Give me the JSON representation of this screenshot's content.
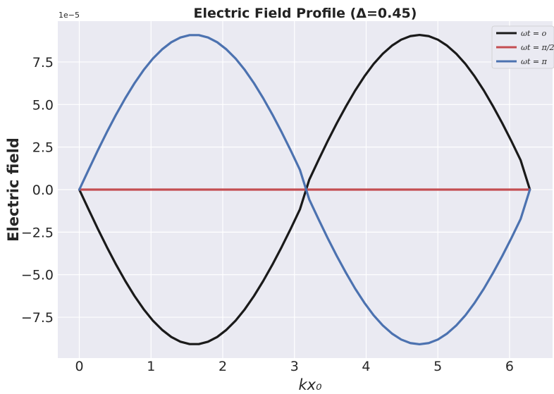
{
  "chart_data": {
    "type": "line",
    "title": "Electric Field Profile (Δ=0.45)",
    "xlabel": "kx₀",
    "ylabel": "Electric field",
    "y_offset_label": "1e−5",
    "xlim": [
      -0.3,
      6.6
    ],
    "ylim": [
      -9.9,
      9.9
    ],
    "y_scale_exponent": -5,
    "grid": true,
    "background": "#eaeaf2",
    "x_ticks": [
      0,
      1,
      2,
      3,
      4,
      5,
      6
    ],
    "x_tick_labels": [
      "0",
      "1",
      "2",
      "3",
      "4",
      "5",
      "6"
    ],
    "y_ticks": [
      -7.5,
      -5.0,
      -2.5,
      0.0,
      2.5,
      5.0,
      7.5
    ],
    "y_tick_labels": [
      "−7.5",
      "−5.0",
      "−2.5",
      "0.0",
      "2.5",
      "5.0",
      "7.5"
    ],
    "legend_position": "top-right",
    "x": [
      0,
      0.1282,
      0.2565,
      0.3847,
      0.5129,
      0.6411,
      0.7694,
      0.8976,
      1.0258,
      1.1541,
      1.2823,
      1.4105,
      1.5387,
      1.667,
      1.7952,
      1.9234,
      2.0517,
      2.1799,
      2.3081,
      2.4363,
      2.5646,
      2.6928,
      2.821,
      2.9493,
      3.0775,
      3.2057,
      3.3339,
      3.4622,
      3.5904,
      3.7186,
      3.8468,
      3.9751,
      4.1033,
      4.2315,
      4.3598,
      4.488,
      4.6162,
      4.7444,
      4.8727,
      5.0009,
      5.1291,
      5.2574,
      5.3856,
      5.5138,
      5.642,
      5.7703,
      5.8985,
      6.0267,
      6.155,
      6.2832
    ],
    "series": [
      {
        "name": "ωt = o",
        "color": "#1a1a1a",
        "values": [
          0,
          -1.15,
          -2.29,
          -3.38,
          -4.41,
          -5.37,
          -6.25,
          -7.03,
          -7.7,
          -8.24,
          -8.66,
          -8.94,
          -9.08,
          -9.08,
          -8.94,
          -8.66,
          -8.24,
          -7.7,
          -7.03,
          -6.25,
          -5.37,
          -4.41,
          -3.38,
          -2.29,
          -1.15,
          0.57,
          1.72,
          2.84,
          3.9,
          4.89,
          5.82,
          6.65,
          7.38,
          7.98,
          8.46,
          8.81,
          9.02,
          9.09,
          9.02,
          8.81,
          8.46,
          7.98,
          7.38,
          6.65,
          5.82,
          4.89,
          3.9,
          2.84,
          1.72,
          0
        ]
      },
      {
        "name": "ωt = π/2",
        "color": "#c44e52",
        "values": [
          0,
          0,
          0,
          0,
          0,
          0,
          0,
          0,
          0,
          0,
          0,
          0,
          0,
          0,
          0,
          0,
          0,
          0,
          0,
          0,
          0,
          0,
          0,
          0,
          0,
          0,
          0,
          0,
          0,
          0,
          0,
          0,
          0,
          0,
          0,
          0,
          0,
          0,
          0,
          0,
          0,
          0,
          0,
          0,
          0,
          0,
          0,
          0,
          0,
          0
        ]
      },
      {
        "name": "ωt = π",
        "color": "#4c72b0",
        "values": [
          0,
          1.15,
          2.29,
          3.38,
          4.41,
          5.37,
          6.25,
          7.03,
          7.7,
          8.24,
          8.66,
          8.94,
          9.08,
          9.08,
          8.94,
          8.66,
          8.24,
          7.7,
          7.03,
          6.25,
          5.37,
          4.41,
          3.38,
          2.29,
          1.15,
          -0.57,
          -1.72,
          -2.84,
          -3.9,
          -4.89,
          -5.82,
          -6.65,
          -7.38,
          -7.98,
          -8.46,
          -8.81,
          -9.02,
          -9.09,
          -9.02,
          -8.81,
          -8.46,
          -7.98,
          -7.38,
          -6.65,
          -5.82,
          -4.89,
          -3.9,
          -2.84,
          -1.72,
          0
        ]
      }
    ]
  }
}
